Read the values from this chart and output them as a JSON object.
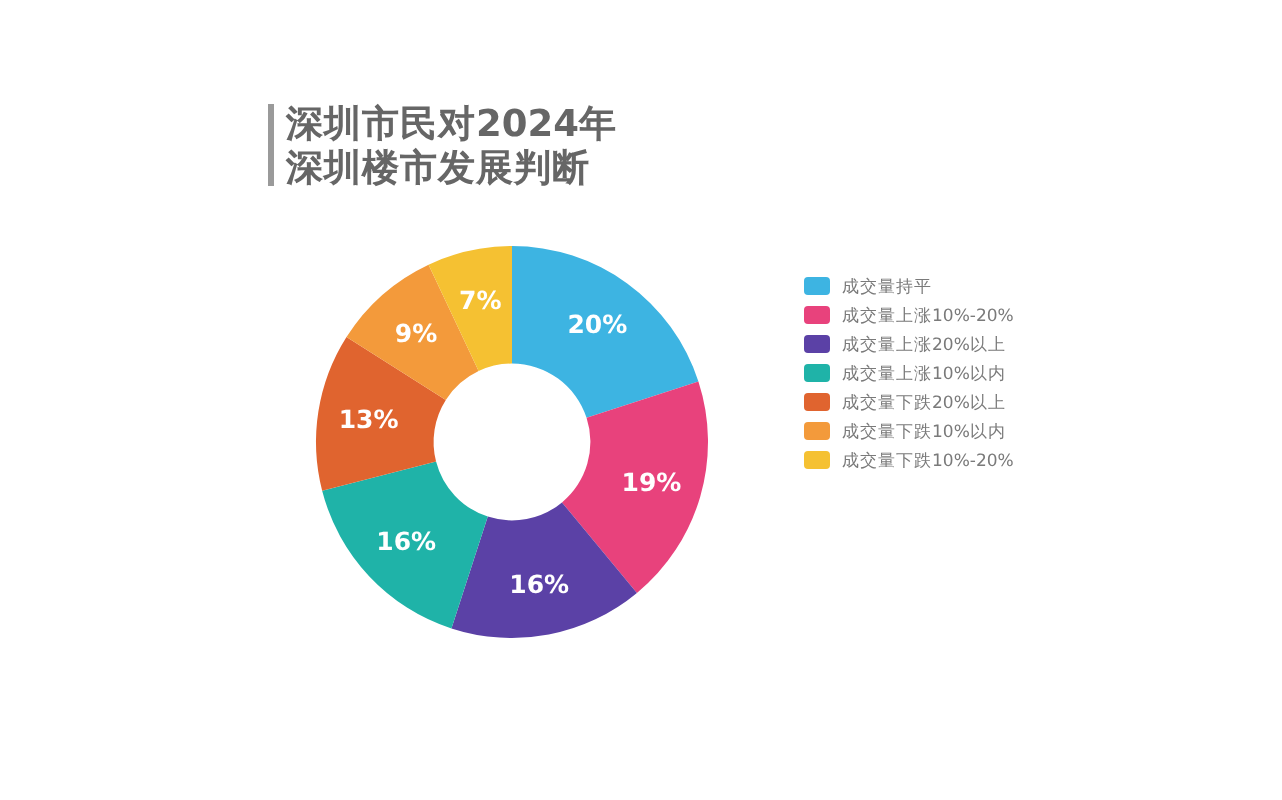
{
  "chart_data": {
    "type": "donut",
    "title": "深圳市民对2024年深圳楼市发展判断",
    "categories": [
      "成交量持平",
      "成交量上涨10%-20%",
      "成交量上涨20%以上",
      "成交量上涨10%以内",
      "成交量下跌20%以上",
      "成交量下跌10%以内",
      "成交量下跌10%-20%"
    ],
    "values": [
      20,
      19,
      16,
      16,
      13,
      9,
      7
    ],
    "colors": [
      "#3db4e2",
      "#e8427c",
      "#5b41a6",
      "#1fb3a8",
      "#e0642f",
      "#f39a3b",
      "#f5c132"
    ],
    "value_labels": [
      "20%",
      "19%",
      "16%",
      "16%",
      "13%",
      "9%",
      "7%"
    ],
    "legend": "right"
  }
}
